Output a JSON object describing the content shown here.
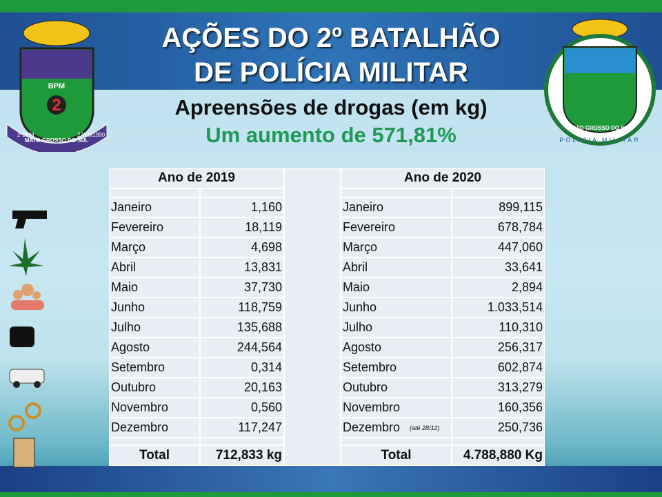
{
  "header": {
    "title_lines": [
      "AÇÕES DO 2º BATALHÃO",
      "DE POLÍCIA MILITAR"
    ],
    "subtitle": "Apreensões de drogas (em kg)",
    "highlight": "Um aumento de 571,81%"
  },
  "logos": {
    "left": {
      "unit": "BPM",
      "number": "2",
      "ring": "MATO GROSSO DO SUL",
      "abbr": "2ºBPM",
      "date": "27/08/1990"
    },
    "right": {
      "ring": "MATO GROSSO DO SUL",
      "bottom": "POLÍCIA MILITAR"
    }
  },
  "table": {
    "years": [
      {
        "heading": "Ano de 2019",
        "rows": [
          [
            "Janeiro",
            "1,160"
          ],
          [
            "Fevereiro",
            "18,119"
          ],
          [
            "Março",
            "4,698"
          ],
          [
            "Abril",
            "13,831"
          ],
          [
            "Maio",
            "37,730"
          ],
          [
            "Junho",
            "118,759"
          ],
          [
            "Julho",
            "135,688"
          ],
          [
            "Agosto",
            "244,564"
          ],
          [
            "Setembro",
            "0,314"
          ],
          [
            "Outubro",
            "20,163"
          ],
          [
            "Novembro",
            "0,560"
          ],
          [
            "Dezembro",
            "117,247"
          ]
        ],
        "total_label": "Total",
        "total": "712,833 kg"
      },
      {
        "heading": "Ano de 2020",
        "rows": [
          [
            "Janeiro",
            "899,115"
          ],
          [
            "Fevereiro",
            "678,784"
          ],
          [
            "Março",
            "447,060"
          ],
          [
            "Abril",
            "33,641"
          ],
          [
            "Maio",
            "2,894"
          ],
          [
            "Junho",
            "1.033,514"
          ],
          [
            "Julho",
            "110,310"
          ],
          [
            "Agosto",
            "256,317"
          ],
          [
            "Setembro",
            "602,874"
          ],
          [
            "Outubro",
            "313,279"
          ],
          [
            "Novembro",
            "160,356"
          ],
          [
            "Dezembro",
            "250,736"
          ]
        ],
        "note": "(até 28/12)",
        "total_label": "Total",
        "total": "4.788,880 Kg"
      }
    ]
  }
}
